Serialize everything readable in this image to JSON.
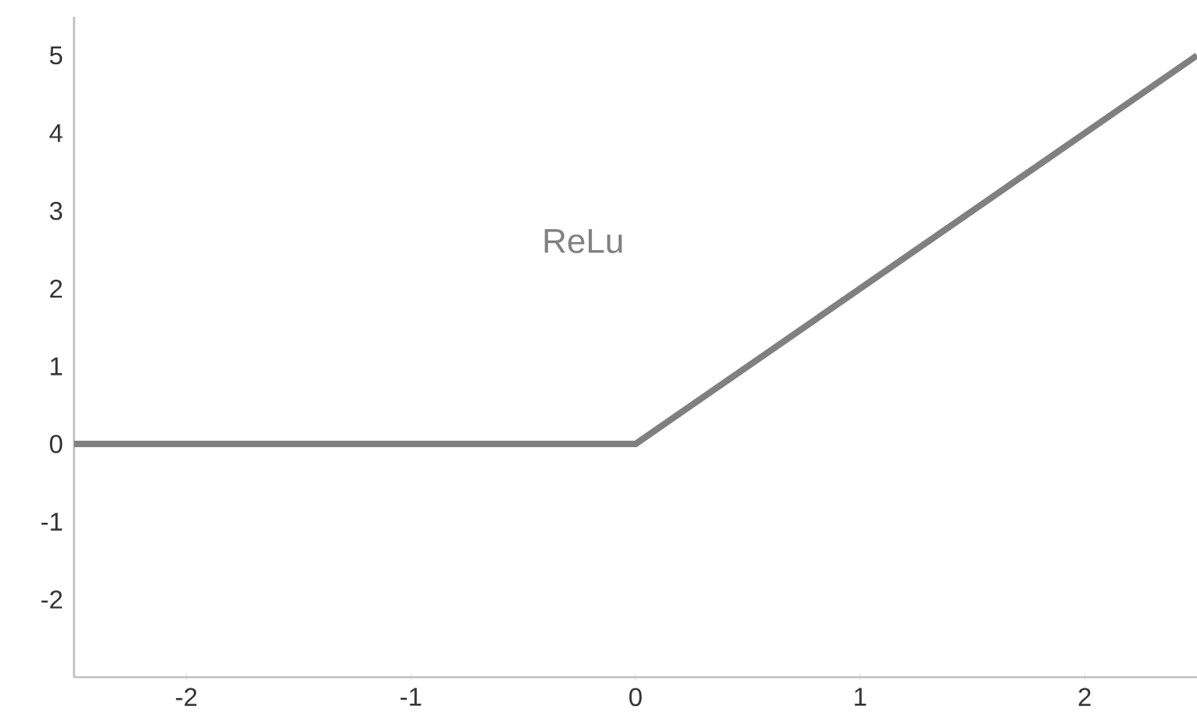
{
  "chart_data": {
    "type": "line",
    "annotations": [
      "ReLu"
    ],
    "x": [
      -2.5,
      0,
      2.5
    ],
    "series": [
      {
        "color": "#808080",
        "values": [
          0,
          0,
          5
        ]
      }
    ],
    "xlim": [
      -2.5,
      2.5
    ],
    "xticks": [
      -2,
      -1,
      0,
      1,
      2
    ],
    "ylim": [
      -3,
      5.5
    ],
    "yticks": [
      -2,
      -1,
      0,
      1,
      2,
      3,
      4,
      5
    ],
    "grid": false
  }
}
